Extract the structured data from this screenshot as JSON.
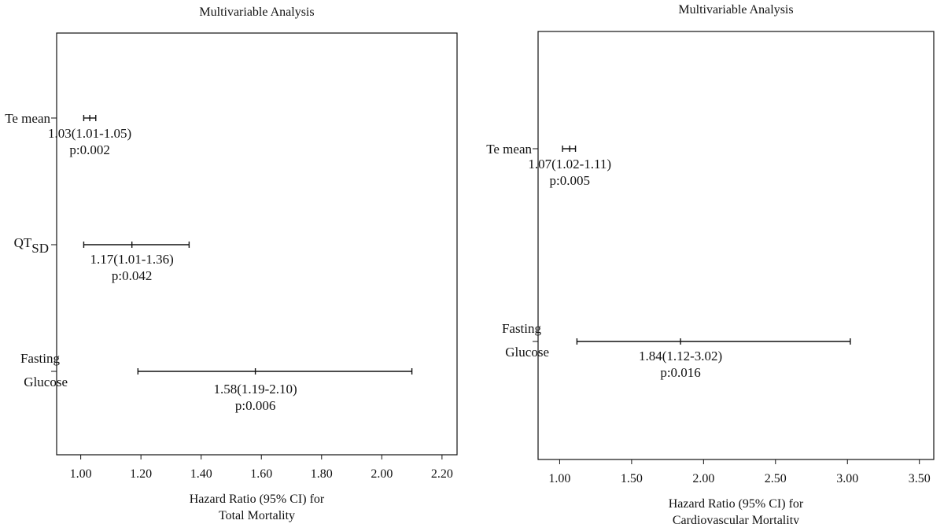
{
  "chart_data": [
    {
      "type": "forest",
      "title": "Multivariable Analysis",
      "xlabel": [
        "Hazard Ratio (95% CI) for",
        "Total Mortality"
      ],
      "xlim": [
        0.92,
        2.25
      ],
      "xticks": [
        1.0,
        1.2,
        1.4,
        1.6,
        1.8,
        2.0,
        2.2
      ],
      "xtick_labels": [
        "1.00",
        "1.20",
        "1.40",
        "1.60",
        "1.80",
        "2.00",
        "2.20"
      ],
      "grid": false,
      "rows": [
        {
          "label": [
            "Te mean"
          ],
          "label_sub": "",
          "hr": 1.03,
          "lo": 1.01,
          "hi": 1.05,
          "text": "1.03(1.01-1.05)",
          "p": "p:0.002"
        },
        {
          "label": [
            "QT"
          ],
          "label_sub": "SD",
          "hr": 1.17,
          "lo": 1.01,
          "hi": 1.36,
          "text": "1.17(1.01-1.36)",
          "p": "p:0.042"
        },
        {
          "label": [
            "Fasting",
            "Glucose"
          ],
          "label_sub": "",
          "hr": 1.58,
          "lo": 1.19,
          "hi": 2.1,
          "text": "1.58(1.19-2.10)",
          "p": "p:0.006"
        }
      ]
    },
    {
      "type": "forest",
      "title": "Multivariable Analysis",
      "xlabel": [
        "Hazard Ratio (95% CI) for",
        "Cardiovascular Mortality"
      ],
      "xlim": [
        0.85,
        3.6
      ],
      "xticks": [
        1.0,
        1.5,
        2.0,
        2.5,
        3.0,
        3.5
      ],
      "xtick_labels": [
        "1.00",
        "1.50",
        "2.00",
        "2.50",
        "3.00",
        "3.50"
      ],
      "grid": false,
      "rows": [
        {
          "label": [
            "Te mean"
          ],
          "label_sub": "",
          "hr": 1.07,
          "lo": 1.02,
          "hi": 1.11,
          "text": "1.07(1.02-1.11)",
          "p": "p:0.005"
        },
        {
          "label": [
            "Fasting",
            "Glucose"
          ],
          "label_sub": "",
          "hr": 1.84,
          "lo": 1.12,
          "hi": 3.02,
          "text": "1.84(1.12-3.02)",
          "p": "p:0.016"
        }
      ]
    }
  ]
}
